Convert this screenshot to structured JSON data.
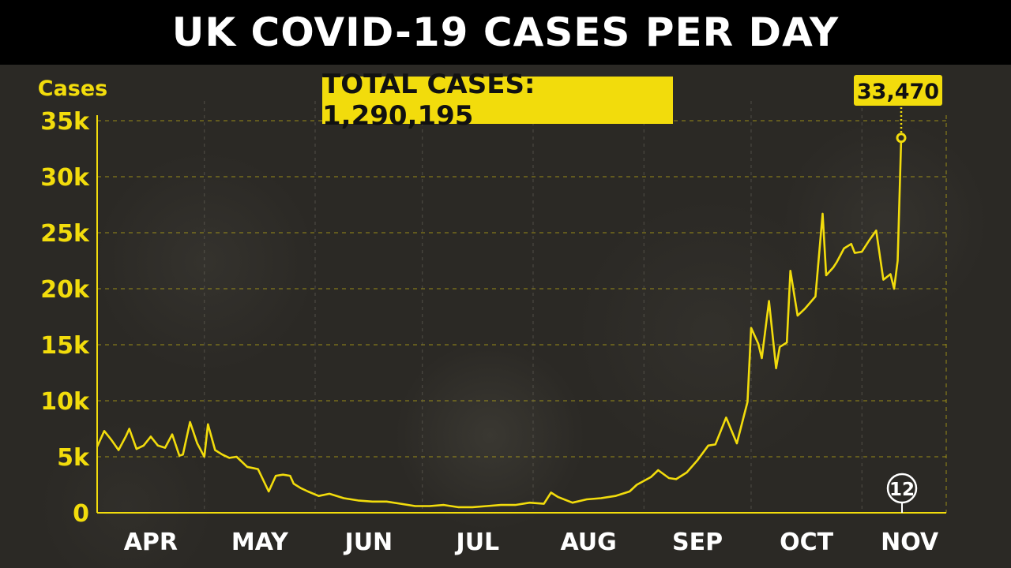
{
  "header": {
    "title": "UK COVID-19 CASES PER DAY"
  },
  "total_badge": "TOTAL CASES: 1,290,195",
  "latest": {
    "value_label": "33,470",
    "day_marker": "12"
  },
  "colors": {
    "accent": "#f2dc0c",
    "banner": "#000000",
    "background": "#2b2925",
    "text": "#ffffff"
  },
  "chart_data": {
    "type": "line",
    "ylabel": "Cases",
    "ylim": [
      0,
      35000
    ],
    "yticks": [
      0,
      5000,
      10000,
      15000,
      20000,
      25000,
      30000,
      35000
    ],
    "ytick_labels": [
      "0",
      "5k",
      "10k",
      "15k",
      "20k",
      "25k",
      "30k",
      "35k"
    ],
    "xlim": [
      "2020-04-01",
      "2020-11-12"
    ],
    "month_labels": [
      "APR",
      "MAY",
      "JUN",
      "JUL",
      "AUG",
      "SEP",
      "OCT",
      "NOV"
    ],
    "month_starts": [
      "2020-04-01",
      "2020-05-01",
      "2020-06-01",
      "2020-07-01",
      "2020-08-01",
      "2020-09-01",
      "2020-10-01",
      "2020-11-01"
    ],
    "grid": true,
    "series": [
      {
        "x": [
          "2020-04-01",
          "2020-04-03",
          "2020-04-05",
          "2020-04-07",
          "2020-04-09",
          "2020-04-10",
          "2020-04-12",
          "2020-04-14",
          "2020-04-16",
          "2020-04-18",
          "2020-04-20",
          "2020-04-22",
          "2020-04-24",
          "2020-04-25",
          "2020-04-27",
          "2020-04-29",
          "2020-05-01",
          "2020-05-02",
          "2020-05-04",
          "2020-05-06",
          "2020-05-08",
          "2020-05-10",
          "2020-05-13",
          "2020-05-16",
          "2020-05-19",
          "2020-05-21",
          "2020-05-23",
          "2020-05-25",
          "2020-05-26",
          "2020-05-28",
          "2020-05-30",
          "2020-06-02",
          "2020-06-05",
          "2020-06-09",
          "2020-06-13",
          "2020-06-17",
          "2020-06-21",
          "2020-06-25",
          "2020-06-29",
          "2020-07-03",
          "2020-07-07",
          "2020-07-11",
          "2020-07-15",
          "2020-07-19",
          "2020-07-23",
          "2020-07-27",
          "2020-07-31",
          "2020-08-04",
          "2020-08-06",
          "2020-08-08",
          "2020-08-12",
          "2020-08-16",
          "2020-08-20",
          "2020-08-24",
          "2020-08-28",
          "2020-08-30",
          "2020-09-03",
          "2020-09-05",
          "2020-09-08",
          "2020-09-10",
          "2020-09-13",
          "2020-09-16",
          "2020-09-19",
          "2020-09-21",
          "2020-09-24",
          "2020-09-27",
          "2020-09-30",
          "2020-10-01",
          "2020-10-03",
          "2020-10-04",
          "2020-10-06",
          "2020-10-08",
          "2020-10-09",
          "2020-10-11",
          "2020-10-12",
          "2020-10-14",
          "2020-10-16",
          "2020-10-19",
          "2020-10-21",
          "2020-10-22",
          "2020-10-24",
          "2020-10-25",
          "2020-10-27",
          "2020-10-29",
          "2020-10-30",
          "2020-11-01",
          "2020-11-03",
          "2020-11-05",
          "2020-11-07",
          "2020-11-09",
          "2020-11-10",
          "2020-11-11",
          "2020-11-12"
        ],
        "y": [
          5900,
          7300,
          6500,
          5600,
          6800,
          7500,
          5700,
          6000,
          6800,
          6000,
          5800,
          7000,
          5100,
          5200,
          8100,
          6200,
          5000,
          7900,
          5600,
          5200,
          4900,
          5000,
          4100,
          3900,
          1900,
          3300,
          3400,
          3300,
          2600,
          2200,
          1900,
          1500,
          1700,
          1300,
          1100,
          1000,
          1000,
          800,
          600,
          600,
          700,
          500,
          500,
          600,
          700,
          700,
          900,
          800,
          1800,
          1400,
          900,
          1200,
          1300,
          1500,
          1900,
          2500,
          3200,
          3800,
          3100,
          3000,
          3600,
          4700,
          6000,
          6100,
          8500,
          6200,
          9900,
          16500,
          15100,
          13800,
          18900,
          12900,
          14800,
          15200,
          21600,
          17600,
          18200,
          19300,
          26700,
          21200,
          21900,
          22400,
          23600,
          24000,
          23200,
          23300,
          24300,
          25200,
          20800,
          21300,
          20000,
          22500,
          33470
        ]
      }
    ]
  }
}
